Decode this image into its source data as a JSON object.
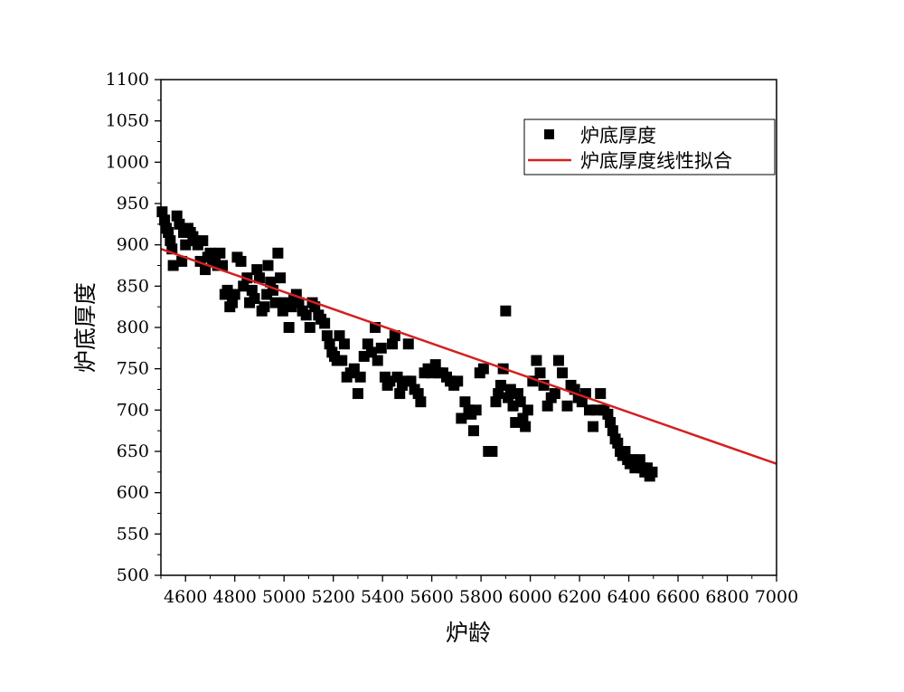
{
  "chart_data": {
    "type": "scatter",
    "title": "",
    "xlabel": "炉龄",
    "ylabel": "炉底厚度",
    "xlim": [
      4500,
      7000
    ],
    "ylim": [
      500,
      1100
    ],
    "x_ticks": [
      4600,
      4800,
      5000,
      5200,
      5400,
      5600,
      5800,
      6000,
      6200,
      6400,
      6600,
      6800,
      7000
    ],
    "y_ticks": [
      500,
      550,
      600,
      650,
      700,
      750,
      800,
      850,
      900,
      950,
      1000,
      1050,
      1100
    ],
    "grid": false,
    "legend_position": "top-right",
    "series": [
      {
        "name": "炉底厚度",
        "marker": "square",
        "color": "#000000",
        "points": [
          [
            4505,
            940
          ],
          [
            4515,
            930
          ],
          [
            4522,
            920
          ],
          [
            4530,
            915
          ],
          [
            4538,
            905
          ],
          [
            4545,
            895
          ],
          [
            4550,
            875
          ],
          [
            4565,
            935
          ],
          [
            4575,
            925
          ],
          [
            4585,
            880
          ],
          [
            4592,
            915
          ],
          [
            4600,
            900
          ],
          [
            4610,
            920
          ],
          [
            4620,
            915
          ],
          [
            4630,
            910
          ],
          [
            4640,
            905
          ],
          [
            4650,
            900
          ],
          [
            4660,
            880
          ],
          [
            4670,
            905
          ],
          [
            4680,
            870
          ],
          [
            4690,
            885
          ],
          [
            4700,
            890
          ],
          [
            4710,
            880
          ],
          [
            4720,
            885
          ],
          [
            4730,
            875
          ],
          [
            4740,
            890
          ],
          [
            4750,
            875
          ],
          [
            4760,
            840
          ],
          [
            4770,
            845
          ],
          [
            4780,
            825
          ],
          [
            4790,
            830
          ],
          [
            4800,
            840
          ],
          [
            4810,
            885
          ],
          [
            4825,
            880
          ],
          [
            4835,
            850
          ],
          [
            4850,
            860
          ],
          [
            4860,
            830
          ],
          [
            4870,
            845
          ],
          [
            4880,
            835
          ],
          [
            4890,
            870
          ],
          [
            4900,
            860
          ],
          [
            4910,
            820
          ],
          [
            4920,
            825
          ],
          [
            4930,
            840
          ],
          [
            4935,
            875
          ],
          [
            4945,
            855
          ],
          [
            4955,
            845
          ],
          [
            4965,
            830
          ],
          [
            4975,
            890
          ],
          [
            4985,
            860
          ],
          [
            4995,
            820
          ],
          [
            5005,
            830
          ],
          [
            5020,
            800
          ],
          [
            5030,
            825
          ],
          [
            5040,
            835
          ],
          [
            5050,
            840
          ],
          [
            5060,
            830
          ],
          [
            5075,
            820
          ],
          [
            5090,
            815
          ],
          [
            5105,
            800
          ],
          [
            5115,
            830
          ],
          [
            5125,
            825
          ],
          [
            5140,
            815
          ],
          [
            5150,
            810
          ],
          [
            5165,
            805
          ],
          [
            5175,
            790
          ],
          [
            5185,
            780
          ],
          [
            5195,
            770
          ],
          [
            5205,
            765
          ],
          [
            5215,
            760
          ],
          [
            5225,
            790
          ],
          [
            5235,
            760
          ],
          [
            5245,
            780
          ],
          [
            5255,
            740
          ],
          [
            5270,
            745
          ],
          [
            5285,
            750
          ],
          [
            5300,
            720
          ],
          [
            5310,
            740
          ],
          [
            5325,
            765
          ],
          [
            5340,
            780
          ],
          [
            5355,
            770
          ],
          [
            5370,
            800
          ],
          [
            5380,
            760
          ],
          [
            5395,
            775
          ],
          [
            5410,
            740
          ],
          [
            5420,
            730
          ],
          [
            5430,
            735
          ],
          [
            5440,
            780
          ],
          [
            5450,
            790
          ],
          [
            5460,
            740
          ],
          [
            5470,
            720
          ],
          [
            5480,
            730
          ],
          [
            5495,
            735
          ],
          [
            5505,
            780
          ],
          [
            5515,
            735
          ],
          [
            5530,
            725
          ],
          [
            5545,
            720
          ],
          [
            5555,
            710
          ],
          [
            5570,
            745
          ],
          [
            5585,
            750
          ],
          [
            5600,
            745
          ],
          [
            5615,
            755
          ],
          [
            5630,
            745
          ],
          [
            5645,
            745
          ],
          [
            5660,
            740
          ],
          [
            5675,
            735
          ],
          [
            5690,
            730
          ],
          [
            5705,
            735
          ],
          [
            5720,
            690
          ],
          [
            5735,
            710
          ],
          [
            5750,
            700
          ],
          [
            5760,
            695
          ],
          [
            5770,
            675
          ],
          [
            5780,
            700
          ],
          [
            5795,
            745
          ],
          [
            5810,
            750
          ],
          [
            5830,
            650
          ],
          [
            5845,
            650
          ],
          [
            5860,
            710
          ],
          [
            5870,
            720
          ],
          [
            5880,
            730
          ],
          [
            5890,
            750
          ],
          [
            5900,
            820
          ],
          [
            5910,
            715
          ],
          [
            5920,
            725
          ],
          [
            5930,
            705
          ],
          [
            5940,
            685
          ],
          [
            5950,
            720
          ],
          [
            5960,
            710
          ],
          [
            5970,
            690
          ],
          [
            5980,
            680
          ],
          [
            5990,
            700
          ],
          [
            6010,
            735
          ],
          [
            6025,
            760
          ],
          [
            6040,
            745
          ],
          [
            6055,
            730
          ],
          [
            6070,
            705
          ],
          [
            6085,
            715
          ],
          [
            6100,
            720
          ],
          [
            6115,
            760
          ],
          [
            6130,
            745
          ],
          [
            6150,
            705
          ],
          [
            6165,
            730
          ],
          [
            6180,
            725
          ],
          [
            6195,
            715
          ],
          [
            6210,
            710
          ],
          [
            6225,
            720
          ],
          [
            6240,
            700
          ],
          [
            6255,
            680
          ],
          [
            6270,
            700
          ],
          [
            6285,
            720
          ],
          [
            6300,
            700
          ],
          [
            6315,
            695
          ],
          [
            6325,
            685
          ],
          [
            6335,
            675
          ],
          [
            6345,
            665
          ],
          [
            6355,
            660
          ],
          [
            6365,
            650
          ],
          [
            6375,
            645
          ],
          [
            6385,
            650
          ],
          [
            6395,
            640
          ],
          [
            6405,
            635
          ],
          [
            6415,
            640
          ],
          [
            6425,
            630
          ],
          [
            6435,
            635
          ],
          [
            6445,
            640
          ],
          [
            6455,
            630
          ],
          [
            6465,
            625
          ],
          [
            6475,
            630
          ],
          [
            6485,
            620
          ],
          [
            6495,
            625
          ]
        ]
      },
      {
        "name": "炉底厚度线性拟合",
        "type": "line",
        "color": "#d42020",
        "points": [
          [
            4500,
            895
          ],
          [
            7000,
            635
          ]
        ]
      }
    ]
  }
}
